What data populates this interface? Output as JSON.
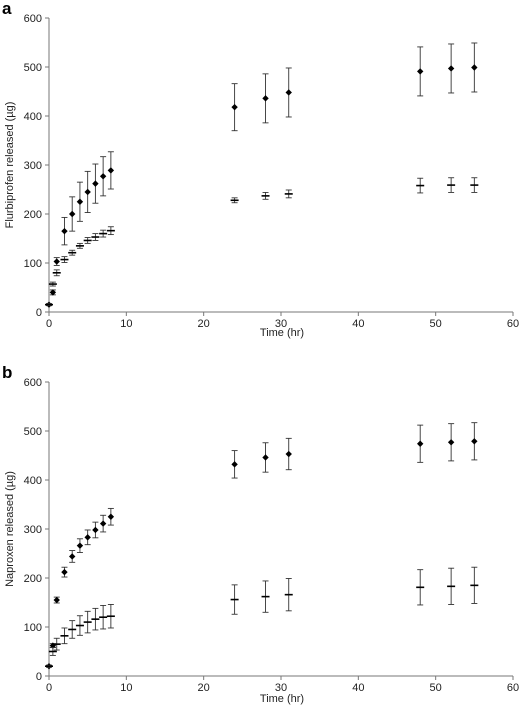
{
  "chart_data": [
    {
      "type": "scatter",
      "panel_label": "a",
      "xlabel": "Time (hr)",
      "ylabel": "Flurbiprofen released (µg)",
      "xlim": [
        0,
        60
      ],
      "ylim": [
        0,
        600
      ],
      "xticks": [
        "0",
        "10",
        "20",
        "30",
        "40",
        "50",
        "60"
      ],
      "yticks": [
        "0",
        "100",
        "200",
        "300",
        "400",
        "500",
        "600"
      ],
      "grid": false,
      "series": [
        {
          "marker": "diamond",
          "points": [
            {
              "x": 0,
              "y": 15,
              "err": 2
            },
            {
              "x": 0.5,
              "y": 40,
              "err": 5
            },
            {
              "x": 1,
              "y": 103,
              "err": 8
            },
            {
              "x": 2,
              "y": 165,
              "err": 28
            },
            {
              "x": 3,
              "y": 200,
              "err": 35
            },
            {
              "x": 4,
              "y": 225,
              "err": 40
            },
            {
              "x": 5,
              "y": 245,
              "err": 42
            },
            {
              "x": 6,
              "y": 262,
              "err": 40
            },
            {
              "x": 7,
              "y": 277,
              "err": 40
            },
            {
              "x": 8,
              "y": 289,
              "err": 38
            },
            {
              "x": 24,
              "y": 418,
              "err": 48
            },
            {
              "x": 28,
              "y": 436,
              "err": 50
            },
            {
              "x": 31,
              "y": 448,
              "err": 50
            },
            {
              "x": 48,
              "y": 491,
              "err": 50
            },
            {
              "x": 52,
              "y": 497,
              "err": 50
            },
            {
              "x": 55,
              "y": 499,
              "err": 50
            }
          ]
        },
        {
          "marker": "dash",
          "points": [
            {
              "x": 0,
              "y": 15,
              "err": 2
            },
            {
              "x": 0.5,
              "y": 57,
              "err": 4
            },
            {
              "x": 1,
              "y": 80,
              "err": 6
            },
            {
              "x": 2,
              "y": 107,
              "err": 6
            },
            {
              "x": 3,
              "y": 121,
              "err": 5
            },
            {
              "x": 4,
              "y": 135,
              "err": 5
            },
            {
              "x": 5,
              "y": 146,
              "err": 6
            },
            {
              "x": 6,
              "y": 153,
              "err": 7
            },
            {
              "x": 7,
              "y": 160,
              "err": 7
            },
            {
              "x": 8,
              "y": 166,
              "err": 8
            },
            {
              "x": 24,
              "y": 228,
              "err": 5
            },
            {
              "x": 28,
              "y": 237,
              "err": 7
            },
            {
              "x": 31,
              "y": 241,
              "err": 8
            },
            {
              "x": 48,
              "y": 258,
              "err": 15
            },
            {
              "x": 52,
              "y": 259,
              "err": 15
            },
            {
              "x": 55,
              "y": 259,
              "err": 15
            }
          ]
        }
      ]
    },
    {
      "type": "scatter",
      "panel_label": "b",
      "xlabel": "Time (hr)",
      "ylabel": "Naproxen released (µg)",
      "xlim": [
        0,
        60
      ],
      "ylim": [
        0,
        600
      ],
      "xticks": [
        "0",
        "10",
        "20",
        "30",
        "40",
        "50",
        "60"
      ],
      "yticks": [
        "0",
        "100",
        "200",
        "300",
        "400",
        "500",
        "600"
      ],
      "grid": false,
      "series": [
        {
          "marker": "diamond",
          "points": [
            {
              "x": 0,
              "y": 20,
              "err": 2
            },
            {
              "x": 0.5,
              "y": 62,
              "err": 4
            },
            {
              "x": 1,
              "y": 155,
              "err": 6
            },
            {
              "x": 2,
              "y": 212,
              "err": 10
            },
            {
              "x": 3,
              "y": 244,
              "err": 12
            },
            {
              "x": 4,
              "y": 266,
              "err": 14
            },
            {
              "x": 5,
              "y": 283,
              "err": 15
            },
            {
              "x": 6,
              "y": 298,
              "err": 16
            },
            {
              "x": 7,
              "y": 311,
              "err": 17
            },
            {
              "x": 8,
              "y": 325,
              "err": 17
            },
            {
              "x": 24,
              "y": 432,
              "err": 28
            },
            {
              "x": 28,
              "y": 446,
              "err": 30
            },
            {
              "x": 31,
              "y": 453,
              "err": 32
            },
            {
              "x": 48,
              "y": 474,
              "err": 38
            },
            {
              "x": 52,
              "y": 477,
              "err": 38
            },
            {
              "x": 55,
              "y": 479,
              "err": 38
            }
          ]
        },
        {
          "marker": "dash",
          "points": [
            {
              "x": 0,
              "y": 20,
              "err": 2
            },
            {
              "x": 0.5,
              "y": 50,
              "err": 8
            },
            {
              "x": 1,
              "y": 65,
              "err": 12
            },
            {
              "x": 2,
              "y": 82,
              "err": 16
            },
            {
              "x": 3,
              "y": 95,
              "err": 18
            },
            {
              "x": 4,
              "y": 103,
              "err": 20
            },
            {
              "x": 5,
              "y": 110,
              "err": 22
            },
            {
              "x": 6,
              "y": 116,
              "err": 22
            },
            {
              "x": 7,
              "y": 120,
              "err": 24
            },
            {
              "x": 8,
              "y": 122,
              "err": 24
            },
            {
              "x": 24,
              "y": 156,
              "err": 30
            },
            {
              "x": 28,
              "y": 162,
              "err": 32
            },
            {
              "x": 31,
              "y": 166,
              "err": 33
            },
            {
              "x": 48,
              "y": 181,
              "err": 36
            },
            {
              "x": 52,
              "y": 183,
              "err": 37
            },
            {
              "x": 55,
              "y": 185,
              "err": 37
            }
          ]
        }
      ]
    }
  ]
}
